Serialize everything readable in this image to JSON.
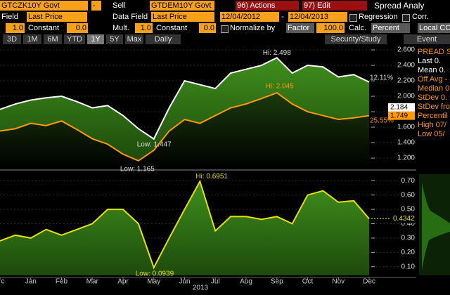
{
  "toolbar": {
    "row1": [
      "GTCZK10Y Govt",
      "-",
      "Sell",
      "GTDEM10Y Govt",
      "96) Actions",
      "97) Edit",
      "Spread Analy"
    ],
    "row2": [
      "Field",
      "Last Price",
      "Data Field",
      "Last Price",
      "12/04/2012",
      "-",
      "12/04/2013",
      "Regression",
      "Corr."
    ],
    "row3": [
      "1.0",
      "Constant",
      "0.0",
      "Mult.",
      "1.0",
      "Constant",
      "0.0",
      "Normalize by",
      "Factor",
      "100.0",
      "Calc.",
      "Percent",
      "Local CC"
    ],
    "row4": [
      "3D",
      "1M",
      "6M",
      "YTD",
      "1Y",
      "5Y",
      "Max",
      "Daily",
      "Security/Study",
      "Event"
    ]
  },
  "stats_panel": [
    "PREAD SU",
    "Last  0.",
    "Mean  0.",
    "Off Avg -",
    "Median 0.",
    "StDev 0.",
    "StDev fro",
    "Percentil",
    "High 07/",
    "Low 05/"
  ],
  "chart_data": [
    {
      "type": "line",
      "series": [
        {
          "name": "GTCZK10Y Govt",
          "color": "#ffffff",
          "values": [
            1.83,
            1.9,
            1.95,
            1.98,
            2.0,
            1.93,
            1.85,
            1.88,
            1.75,
            1.58,
            1.447,
            1.85,
            2.2,
            2.15,
            2.1,
            2.3,
            2.35,
            2.4,
            2.498,
            2.3,
            2.4,
            2.38,
            2.25,
            2.28,
            2.184
          ]
        },
        {
          "name": "GTDEM10Y Govt",
          "color": "#ff9900",
          "values": [
            1.55,
            1.58,
            1.65,
            1.62,
            1.68,
            1.57,
            1.45,
            1.38,
            1.25,
            1.165,
            1.3,
            1.55,
            1.7,
            1.65,
            1.75,
            1.85,
            1.9,
            1.97,
            2.045,
            1.9,
            1.8,
            1.75,
            1.7,
            1.72,
            1.749
          ]
        }
      ],
      "ylim": [
        1.064,
        2.664
      ],
      "yticks": [
        {
          "value": 1.2,
          "label": "1.200"
        },
        {
          "value": 1.4,
          "label": "1.400"
        },
        {
          "value": 1.6,
          "label": "1.600"
        },
        {
          "value": 1.8,
          "label": "1.800"
        },
        {
          "value": 2.0,
          "label": "2.000"
        },
        {
          "value": 2.2,
          "label": "2.200"
        },
        {
          "value": 2.4,
          "label": "2.400"
        },
        {
          "value": 2.6,
          "label": "2.600"
        }
      ],
      "annotations": [
        "Hi: 2.498",
        "Low: 1.447",
        "Hi: 2.045",
        "Low: 1.165",
        "12.11%",
        "25.55%",
        "2.184",
        "1.749"
      ]
    },
    {
      "type": "line",
      "categories": [
        "c",
        null,
        "Jan",
        null,
        "Feb",
        null,
        "Mar",
        null,
        "Apr",
        null,
        "May",
        null,
        "Jun",
        null,
        "Jul",
        null,
        "Aug",
        null,
        "Sep",
        null,
        "Oct",
        null,
        "Nov",
        null,
        "Dec"
      ],
      "x_year": "2013",
      "series": [
        {
          "name": "Spread",
          "color": "#e8e000",
          "values": [
            0.28,
            0.32,
            0.3,
            0.36,
            0.32,
            0.36,
            0.4,
            0.5,
            0.5,
            0.4,
            0.0939,
            0.3,
            0.5,
            0.6951,
            0.35,
            0.45,
            0.45,
            0.43,
            0.45,
            0.4,
            0.6,
            0.63,
            0.55,
            0.56,
            0.4342
          ]
        }
      ],
      "ylim": [
        0.04,
        0.76
      ],
      "yticks": [
        {
          "value": 0.1,
          "label": "0.10"
        },
        {
          "value": 0.2,
          "label": "0.20"
        },
        {
          "value": 0.3,
          "label": "0.30"
        },
        {
          "value": 0.4,
          "label": "0.40"
        },
        {
          "value": 0.5,
          "label": "0.50"
        },
        {
          "value": 0.6,
          "label": "0.60"
        },
        {
          "value": 0.7,
          "label": "0.70"
        }
      ],
      "annotations": [
        "Hi: 0.6951",
        "Low: 0.0939",
        "0.4342"
      ]
    }
  ]
}
